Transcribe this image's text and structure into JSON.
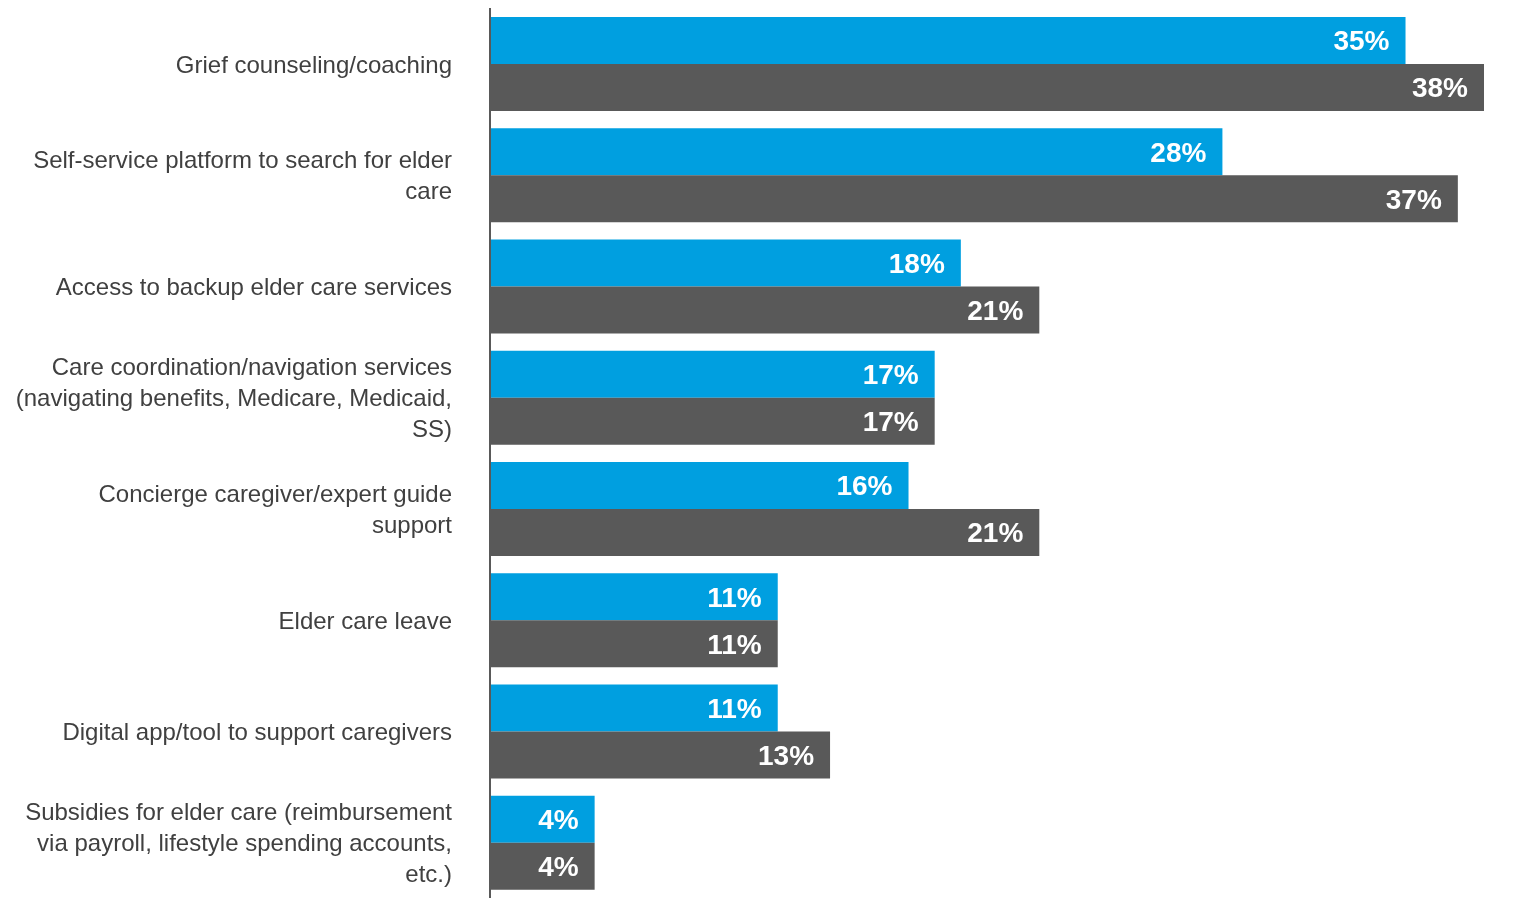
{
  "chart_data": {
    "type": "bar",
    "orientation": "horizontal",
    "categories": [
      "Grief counseling/coaching",
      "Self-service platform to search for elder care",
      "Access to backup elder care services",
      "Care coordination/navigation services (navigating benefits, Medicare, Medicaid, SS)",
      "Concierge caregiver/expert guide support",
      "Elder care leave",
      "Digital app/tool to support caregivers",
      "Subsidies for elder care (reimbursement via payroll, lifestyle spending accounts, etc.)"
    ],
    "series": [
      {
        "color": "#009fe0",
        "values": [
          35,
          28,
          18,
          17,
          16,
          11,
          11,
          4
        ],
        "value_labels": [
          "35%",
          "28%",
          "18%",
          "17%",
          "16%",
          "11%",
          "11%",
          "4%"
        ]
      },
      {
        "color": "#595959",
        "values": [
          38,
          37,
          21,
          17,
          21,
          11,
          13,
          4
        ],
        "value_labels": [
          "38%",
          "37%",
          "21%",
          "17%",
          "21%",
          "11%",
          "13%",
          "4%"
        ]
      }
    ]
  }
}
